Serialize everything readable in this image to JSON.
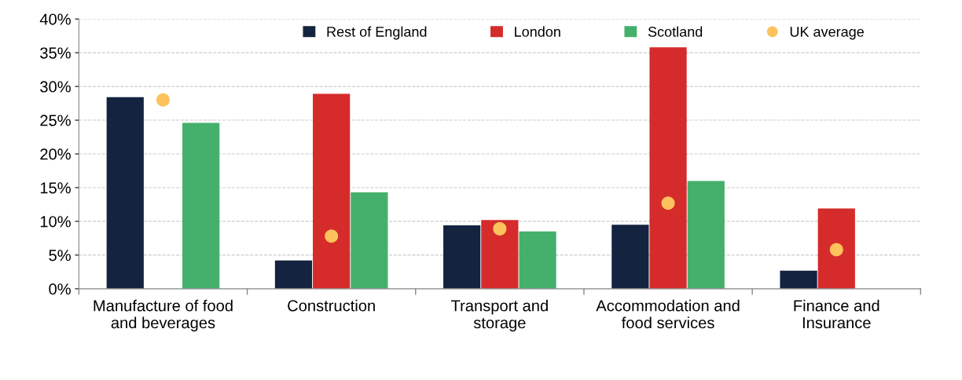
{
  "chart_data": {
    "type": "bar",
    "categories": [
      "Manufacture of food\nand beverages",
      "Construction",
      "Transport and\nstorage",
      "Accommodation and\nfood services",
      "Finance and\nInsurance"
    ],
    "series": [
      {
        "name": "Rest of England",
        "color": "#14233f",
        "values": [
          28.4,
          4.2,
          9.4,
          9.5,
          2.7
        ]
      },
      {
        "name": "London",
        "color": "#d52b2b",
        "values": [
          null,
          28.9,
          10.2,
          35.8,
          11.9
        ]
      },
      {
        "name": "Scotland",
        "color": "#45b06b",
        "values": [
          24.6,
          14.3,
          8.5,
          16.0,
          null
        ]
      },
      {
        "name": "UK average",
        "type": "scatter",
        "color": "#fdc25c",
        "marker": "circle",
        "x": [
          "Manufacture of food\nand beverages",
          "Construction",
          "Transport and\nstorage",
          "Accommodation and\nfood services",
          "Finance and\nInsurance"
        ],
        "values": [
          28.0,
          7.8,
          8.9,
          12.7,
          5.8
        ]
      }
    ],
    "ylim": [
      0,
      40
    ],
    "yticks": [
      {
        "value": 0,
        "label": "0%"
      },
      {
        "value": 5,
        "label": "5%"
      },
      {
        "value": 10,
        "label": "10%"
      },
      {
        "value": 15,
        "label": "15%"
      },
      {
        "value": 20,
        "label": "20%"
      },
      {
        "value": 25,
        "label": "25%"
      },
      {
        "value": 30,
        "label": "30%"
      },
      {
        "value": 35,
        "label": "35%"
      },
      {
        "value": 40,
        "label": "40%"
      }
    ],
    "grid": "y",
    "legend": "top"
  }
}
